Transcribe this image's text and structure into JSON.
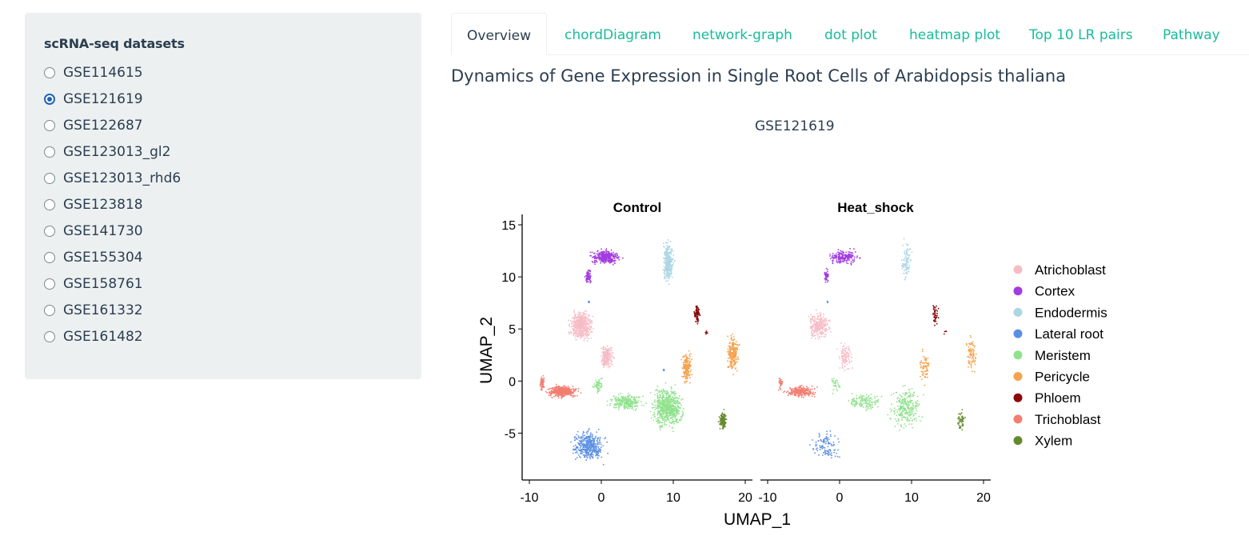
{
  "sidebar": {
    "title": "scRNA-seq datasets",
    "options": [
      {
        "label": "GSE114615",
        "checked": false
      },
      {
        "label": "GSE121619",
        "checked": true
      },
      {
        "label": "GSE122687",
        "checked": false
      },
      {
        "label": "GSE123013_gl2",
        "checked": false
      },
      {
        "label": "GSE123013_rhd6",
        "checked": false
      },
      {
        "label": "GSE123818",
        "checked": false
      },
      {
        "label": "GSE141730",
        "checked": false
      },
      {
        "label": "GSE155304",
        "checked": false
      },
      {
        "label": "GSE158761",
        "checked": false
      },
      {
        "label": "GSE161332",
        "checked": false
      },
      {
        "label": "GSE161482",
        "checked": false
      }
    ]
  },
  "tabs": [
    {
      "label": "Overview",
      "active": true
    },
    {
      "label": "chordDiagram",
      "active": false
    },
    {
      "label": "network-graph",
      "active": false
    },
    {
      "label": "dot plot",
      "active": false
    },
    {
      "label": "heatmap plot",
      "active": false
    },
    {
      "label": "Top 10 LR pairs",
      "active": false
    },
    {
      "label": "Pathway",
      "active": false
    }
  ],
  "main": {
    "title": "Dynamics of Gene Expression in Single Root Cells of Arabidopsis thaliana",
    "plot_title": "GSE121619"
  },
  "chart_data": {
    "type": "scatter",
    "xlabel": "UMAP_1",
    "ylabel": "UMAP_2",
    "xlim": [
      -11,
      21
    ],
    "ylim": [
      -9.5,
      16
    ],
    "xticks": [
      -10,
      0,
      10,
      20
    ],
    "yticks": [
      15,
      10,
      5,
      0,
      -5
    ],
    "panels": [
      {
        "name": "Control"
      },
      {
        "name": "Heat_shock"
      }
    ],
    "legend_position": "right",
    "series": [
      {
        "name": "Atrichoblast",
        "color": "#f6bcc6",
        "clusters": [
          {
            "x": -2.8,
            "y": 5.3,
            "rx": 2.2,
            "ry": 1.9,
            "n": [
              500,
              260
            ]
          },
          {
            "x": 0.8,
            "y": 2.3,
            "rx": 1.3,
            "ry": 1.8,
            "n": [
              190,
              100
            ]
          }
        ]
      },
      {
        "name": "Cortex",
        "color": "#a23ce0",
        "clusters": [
          {
            "x": 0.6,
            "y": 11.9,
            "rx": 2.8,
            "ry": 0.9,
            "n": [
              340,
              200
            ]
          },
          {
            "x": -1.8,
            "y": 10.1,
            "rx": 0.6,
            "ry": 1.0,
            "n": [
              70,
              40
            ]
          }
        ]
      },
      {
        "name": "Endodermis",
        "color": "#acd6e3",
        "clusters": [
          {
            "x": 9.3,
            "y": 11.5,
            "rx": 1.1,
            "ry": 2.9,
            "n": [
              300,
              90
            ]
          }
        ]
      },
      {
        "name": "Lateral root",
        "color": "#5b8fe3",
        "clusters": [
          {
            "x": -1.8,
            "y": -6.2,
            "rx": 3.0,
            "ry": 2.0,
            "n": [
              420,
              110
            ]
          },
          {
            "x": -1.7,
            "y": 7.6,
            "rx": 0.2,
            "ry": 0.2,
            "n": [
              6,
              4
            ]
          },
          {
            "x": 8.7,
            "y": 1.0,
            "rx": 0.2,
            "ry": 0.4,
            "n": [
              5,
              0
            ]
          }
        ]
      },
      {
        "name": "Meristem",
        "color": "#90e28d",
        "clusters": [
          {
            "x": 9.2,
            "y": -2.5,
            "rx": 3.0,
            "ry": 2.8,
            "n": [
              650,
              260
            ]
          },
          {
            "x": 3.5,
            "y": -2.0,
            "rx": 3.3,
            "ry": 1.1,
            "n": [
              250,
              130
            ]
          },
          {
            "x": -0.5,
            "y": -0.4,
            "rx": 1.0,
            "ry": 1.0,
            "n": [
              60,
              30
            ]
          }
        ]
      },
      {
        "name": "Pericycle",
        "color": "#f4a24e",
        "clusters": [
          {
            "x": 18.3,
            "y": 2.6,
            "rx": 1.1,
            "ry": 2.5,
            "n": [
              220,
              80
            ]
          },
          {
            "x": 11.9,
            "y": 1.3,
            "rx": 1.0,
            "ry": 2.1,
            "n": [
              170,
              70
            ]
          }
        ]
      },
      {
        "name": "Phloem",
        "color": "#8a0a0a",
        "clusters": [
          {
            "x": 13.3,
            "y": 6.4,
            "rx": 0.6,
            "ry": 1.3,
            "n": [
              80,
              45
            ]
          },
          {
            "x": 14.7,
            "y": 4.7,
            "rx": 0.3,
            "ry": 0.3,
            "n": [
              8,
              4
            ]
          }
        ]
      },
      {
        "name": "Trichoblast",
        "color": "#f27e71",
        "clusters": [
          {
            "x": -5.4,
            "y": -1.0,
            "rx": 3.0,
            "ry": 0.8,
            "n": [
              420,
              230
            ]
          },
          {
            "x": -8.2,
            "y": -0.3,
            "rx": 0.5,
            "ry": 1.2,
            "n": [
              60,
              30
            ]
          }
        ]
      },
      {
        "name": "Xylem",
        "color": "#648a2c",
        "clusters": [
          {
            "x": 16.9,
            "y": -3.8,
            "rx": 0.8,
            "ry": 1.3,
            "n": [
              110,
              50
            ]
          }
        ]
      }
    ]
  }
}
